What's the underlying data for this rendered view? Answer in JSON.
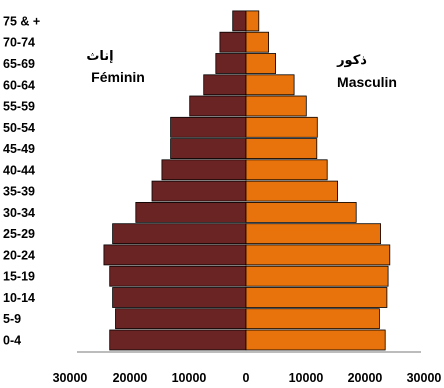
{
  "chart_data": {
    "type": "bar",
    "orientation": "horizontal",
    "layout": "population-pyramid",
    "categories": [
      "0-4",
      "5-9",
      "10-14",
      "15-19",
      "20-24",
      "25-29",
      "30-34",
      "35-39",
      "40-44",
      "45-49",
      "50-54",
      "55-59",
      "60-64",
      "65-69",
      "70-74",
      "75 & +"
    ],
    "series": [
      {
        "name": "Féminin",
        "name_ar": "إناث",
        "side": "left",
        "color": "#6b2424",
        "values": [
          23500,
          22500,
          23000,
          23500,
          24500,
          23000,
          19000,
          16200,
          14500,
          13000,
          13000,
          9700,
          7300,
          5200,
          4500,
          2300
        ]
      },
      {
        "name": "Masculin",
        "name_ar": "ذكور",
        "side": "right",
        "color": "#e8720c",
        "values": [
          24000,
          23000,
          24300,
          24500,
          24800,
          23200,
          19000,
          15800,
          14000,
          12200,
          12300,
          10400,
          8300,
          5100,
          3900,
          2200
        ]
      }
    ],
    "x_ticks": [
      "30000",
      "20000",
      "10000",
      "0",
      "10000",
      "20000",
      "30000"
    ],
    "xlim": [
      -30000,
      30000
    ],
    "grid": false,
    "legend": "text labels beside bars (top-left and top-right)"
  }
}
